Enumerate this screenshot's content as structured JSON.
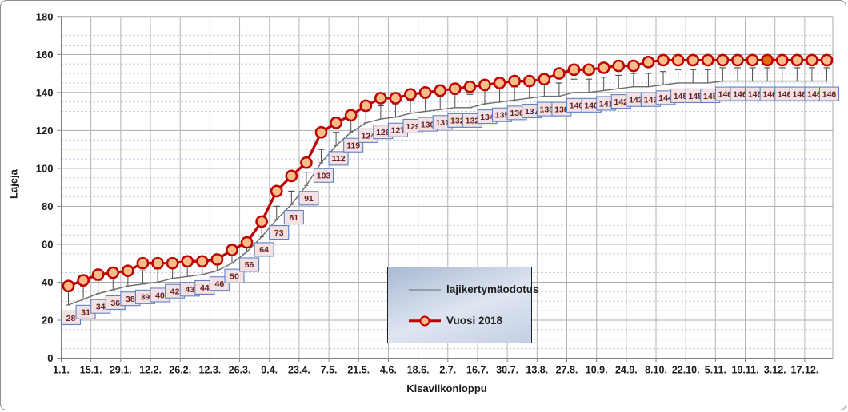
{
  "chart_data": {
    "type": "line",
    "title": "",
    "xlabel": "Kisaviikonloppu",
    "ylabel": "Lajeja",
    "ylim": [
      0,
      180
    ],
    "y_major_step": 20,
    "y_minor_step": 5,
    "grid": "major-solid, minor-dashed",
    "legend_position": "inner-bottom-center-box",
    "y_tick_labels": [
      "0",
      "20",
      "40",
      "60",
      "80",
      "100",
      "120",
      "140",
      "160",
      "180"
    ],
    "x_tick_labels": [
      "1.1.",
      "15.1.",
      "29.1.",
      "12.2.",
      "26.2.",
      "12.3.",
      "26.3.",
      "9.4.",
      "23.4.",
      "7.5.",
      "21.5.",
      "4.6.",
      "18.6.",
      "2.7.",
      "16.7.",
      "30.7.",
      "13.8.",
      "27.8.",
      "10.9.",
      "24.9.",
      "8.10.",
      "22.10.",
      "5.11.",
      "19.11.",
      "3.12.",
      "17.12."
    ],
    "weeks_per_tick": 2,
    "series": [
      {
        "name": "lajikertymäodotus",
        "color": "#6b6b6b",
        "marker": "none",
        "data_labels": true,
        "label_box_fill": "#F5E1E4",
        "label_box_border": "#5B84C4",
        "label_text_color": "#632423",
        "error_bar_plus": 7,
        "values": [
          28,
          31,
          34,
          36,
          38,
          39,
          40,
          42,
          43,
          44,
          46,
          50,
          56,
          64,
          73,
          81,
          91,
          103,
          112,
          119,
          124,
          126,
          127,
          129,
          130,
          131,
          132,
          132,
          134,
          135,
          136,
          137,
          138,
          138,
          140,
          140,
          141,
          142,
          143,
          143,
          144,
          145,
          145,
          145,
          146,
          146,
          146,
          146,
          146,
          146,
          146,
          146
        ]
      },
      {
        "name": "Vuosi 2018",
        "color": "#C00000",
        "marker": "circle",
        "marker_fill": "#F9BD89",
        "highlight_index": 47,
        "highlight_fill": "#E46C0A",
        "values": [
          38,
          41,
          44,
          45,
          46,
          50,
          50,
          50,
          51,
          51,
          52,
          57,
          61,
          72,
          88,
          96,
          103,
          119,
          124,
          128,
          133,
          137,
          137,
          139,
          140,
          141,
          142,
          143,
          144,
          145,
          146,
          146,
          147,
          150,
          152,
          152,
          153,
          154,
          154,
          156,
          157,
          157,
          157,
          157,
          157,
          157,
          157,
          157,
          157,
          157,
          157,
          157
        ]
      }
    ]
  }
}
